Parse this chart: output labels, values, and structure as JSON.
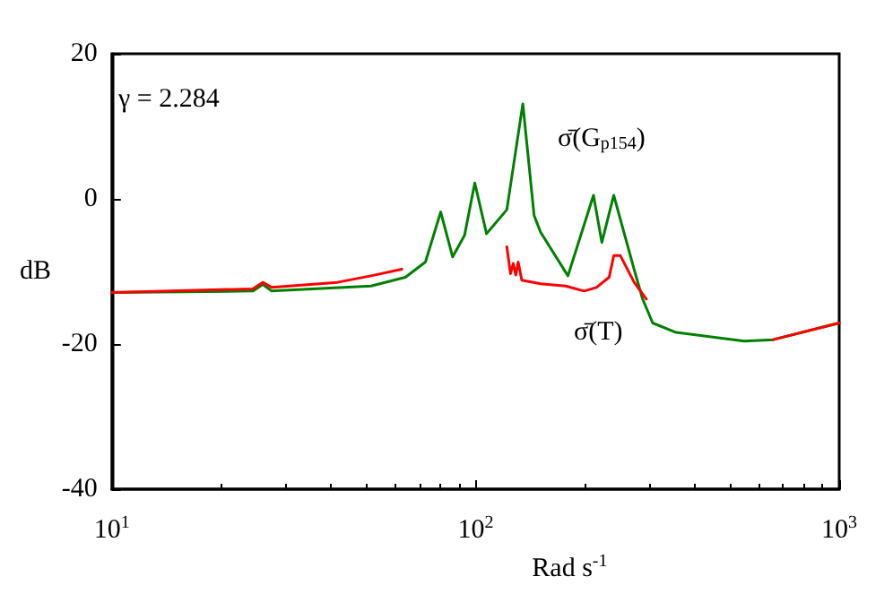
{
  "chart_data": {
    "type": "line",
    "xlabel": "Rad s$^{-1}$",
    "ylabel": "dB",
    "log": "x",
    "grid": false,
    "legend": false,
    "marker": "none",
    "line_style": "solid",
    "xlim": [
      10,
      1000
    ],
    "xticks": [
      {
        "value": 10,
        "label": "10$^{1}$"
      },
      {
        "value": 100,
        "label": "10$^{2}$"
      },
      {
        "value": 1000,
        "label": "10$^{3}$"
      }
    ],
    "ylim": [
      -40,
      20
    ],
    "yticks": [
      -40,
      -20,
      0,
      20
    ],
    "annotations": [
      "γ = 2.284"
    ],
    "series": [
      {
        "name": "σ̄(G$_{p154}$)",
        "color": "#008000",
        "x": [
          10,
          24.4,
          26,
          27.5,
          51.6,
          64.1,
          72.8,
          80.2,
          86.5,
          93.3,
          99.5,
          107.2,
          121.9,
          134.9,
          144.9,
          151,
          179.5,
          211,
          222.5,
          239.9,
          272.9,
          288,
          307,
          356,
          548,
          658,
          1000
        ],
        "values": [
          -12.9,
          -12.7,
          -11.8,
          -12.7,
          -12.0,
          -10.8,
          -8.7,
          -1.8,
          -8.0,
          -5.0,
          2.2,
          -4.8,
          -1.5,
          13.1,
          -2.3,
          -4.6,
          -10.6,
          0.5,
          -6.0,
          0.5,
          -9.7,
          -13.8,
          -17.1,
          -18.4,
          -19.6,
          -19.4,
          -17.1
        ]
      },
      {
        "name": "σ̄(T)",
        "color": "#ff0000",
        "x": [
          10,
          24.4,
          26,
          27.5,
          41.7,
          51.6,
          62.7,
          100,
          121.9,
          124.8,
          127,
          129,
          131,
          134,
          151,
          177,
          198.7,
          215,
          233,
          240,
          250,
          273,
          295,
          400,
          658,
          1000
        ],
        "values": [
          -12.9,
          -12.4,
          -11.5,
          -12.2,
          -11.5,
          -10.6,
          -9.7,
          null,
          -6.6,
          -10.3,
          -8.9,
          -10.5,
          -8.7,
          -11.2,
          -11.7,
          -12.0,
          -12.7,
          -12.2,
          -10.8,
          -7.8,
          -7.8,
          -11.5,
          -13.8,
          null,
          -19.4,
          -17.1
        ]
      }
    ]
  }
}
